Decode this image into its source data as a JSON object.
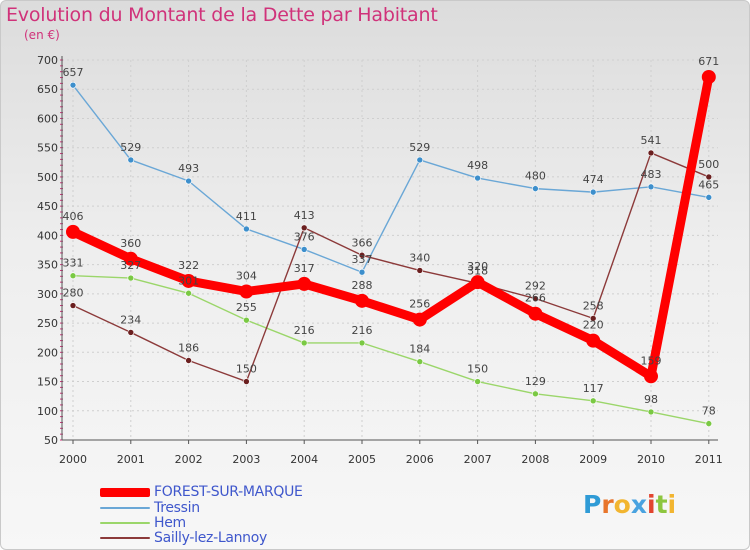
{
  "header": {
    "title": "Evolution du Montant de la Dette par Habitant",
    "subtitle": "(en €)"
  },
  "logo": {
    "letters": [
      "P",
      "r",
      "o",
      "x",
      "i",
      "t",
      "i"
    ],
    "colors": [
      "#2f9bd6",
      "#e8752b",
      "#f2b530",
      "#4aa3e0",
      "#e2452f",
      "#8dc63f",
      "#f2b530"
    ]
  },
  "chart_data": {
    "type": "line",
    "title": "Evolution du Montant de la Dette par Habitant",
    "subtitle": "(en €)",
    "xlabel": "",
    "ylabel": "",
    "x": [
      "2000",
      "2001",
      "2002",
      "2003",
      "2004",
      "2005",
      "2006",
      "2007",
      "2008",
      "2009",
      "2010",
      "2011"
    ],
    "ylim": [
      50,
      700
    ],
    "yticks": [
      "50",
      "100",
      "150",
      "200",
      "250",
      "300",
      "350",
      "400",
      "450",
      "500",
      "550",
      "600",
      "650",
      "700"
    ],
    "grid": true,
    "legend_position": "bottom-left",
    "series": [
      {
        "name": "Tressin",
        "color": "#6aa7d6",
        "marker_color": "#3d8fcc",
        "values": [
          657,
          529,
          493,
          411,
          376,
          337,
          529,
          498,
          480,
          474,
          483,
          465
        ],
        "labels": [
          "657",
          "529",
          "493",
          "411",
          "376",
          "337",
          "529",
          "498",
          "480",
          "474",
          "483",
          "465"
        ]
      },
      {
        "name": "Hem",
        "color": "#9bd66a",
        "marker_color": "#7ac943",
        "values": [
          331,
          327,
          301,
          255,
          216,
          216,
          184,
          150,
          129,
          117,
          98,
          78
        ],
        "labels": [
          "331",
          "327",
          "301",
          "255",
          "216",
          "216",
          "184",
          "150",
          "129",
          "117",
          "98",
          "78"
        ]
      },
      {
        "name": "Sailly-lez-Lannoy",
        "color": "#8c3a3a",
        "marker_color": "#6b1f1f",
        "values": [
          280,
          234,
          186,
          150,
          413,
          366,
          340,
          318,
          292,
          258,
          541,
          500
        ],
        "labels": [
          "280",
          "234",
          "186",
          "150",
          "413",
          "366",
          "340",
          "318",
          "292",
          "258",
          "541",
          "500"
        ]
      },
      {
        "name": "FOREST-SUR-MARQUE",
        "color": "#ff0000",
        "marker_color": "#ff0000",
        "values": [
          406,
          360,
          322,
          304,
          317,
          288,
          256,
          320,
          266,
          220,
          159,
          671
        ],
        "labels": [
          "406",
          "360",
          "322",
          "304",
          "317",
          "288",
          "256",
          "320",
          "266",
          "220",
          "159",
          "671"
        ]
      }
    ],
    "legend": [
      {
        "name": "FOREST-SUR-MARQUE",
        "color": "#ff0000"
      },
      {
        "name": "Tressin",
        "color": "#6aa7d6"
      },
      {
        "name": "Hem",
        "color": "#9bd66a"
      },
      {
        "name": "Sailly-lez-Lannoy",
        "color": "#8c3a3a"
      }
    ]
  }
}
